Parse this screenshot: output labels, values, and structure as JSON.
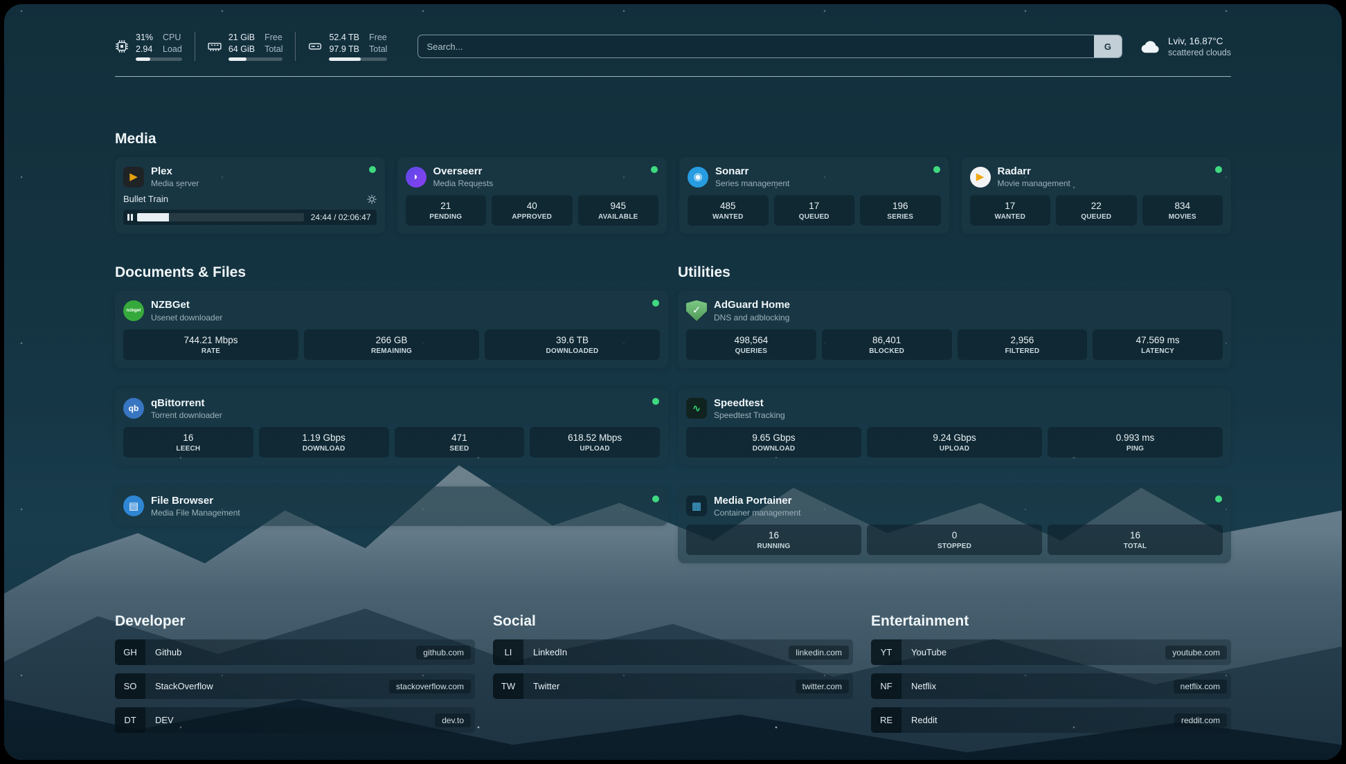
{
  "colors": {
    "online": "#3fd97f",
    "bar-fill": "#e9eff2"
  },
  "topbar": {
    "cpu": {
      "value_top": "31%",
      "value_bottom": "2.94",
      "label_top": "CPU",
      "label_bottom": "Load",
      "progress": 31
    },
    "memory": {
      "value_top": "21 GiB",
      "value_bottom": "64 GiB",
      "label_top": "Free",
      "label_bottom": "Total",
      "progress": 33
    },
    "disk": {
      "value_top": "52.4 TB",
      "value_bottom": "97.9 TB",
      "label_top": "Free",
      "label_bottom": "Total",
      "progress": 54
    },
    "search": {
      "placeholder": "Search...",
      "provider_label": "G",
      "value": ""
    },
    "weather": {
      "location": "Lviv, 16.87°C",
      "condition": "scattered clouds"
    }
  },
  "media": {
    "title": "Media",
    "plex": {
      "icon": {
        "text": "▶",
        "bg": "#1f2326",
        "fg": "#e5a00d"
      },
      "name": "Plex",
      "subtitle": "Media server",
      "now_playing": "Bullet Train",
      "elapsed": "24:44 / 02:06:47",
      "progress": 19
    },
    "overseerr": {
      "icon": {
        "text": "◗",
        "bg": "linear-gradient(135deg,#5b4ae8,#8a3ff0)",
        "fg": "#f5f3ff",
        "shape": "circle"
      },
      "name": "Overseerr",
      "subtitle": "Media Requests",
      "stats": [
        {
          "value": "21",
          "label": "PENDING"
        },
        {
          "value": "40",
          "label": "APPROVED"
        },
        {
          "value": "945",
          "label": "AVAILABLE"
        }
      ]
    },
    "sonarr": {
      "icon": {
        "text": "◉",
        "bg": "#279ce0",
        "fg": "#eaf7ff",
        "shape": "circle"
      },
      "name": "Sonarr",
      "subtitle": "Series management",
      "stats": [
        {
          "value": "485",
          "label": "WANTED"
        },
        {
          "value": "17",
          "label": "QUEUED"
        },
        {
          "value": "196",
          "label": "SERIES"
        }
      ]
    },
    "radarr": {
      "icon": {
        "text": "▶",
        "bg": "#f2f3f4",
        "fg": "#f0a811",
        "shape": "circle"
      },
      "name": "Radarr",
      "subtitle": "Movie management",
      "stats": [
        {
          "value": "17",
          "label": "WANTED"
        },
        {
          "value": "22",
          "label": "QUEUED"
        },
        {
          "value": "834",
          "label": "MOVIES"
        }
      ]
    }
  },
  "documents": {
    "title": "Documents & Files",
    "nzbget": {
      "icon": {
        "text": "nzbget",
        "bg": "#36a93c",
        "fg": "#ffffff",
        "shape": "circle"
      },
      "name": "NZBGet",
      "subtitle": "Usenet downloader",
      "stats": [
        {
          "value": "744.21 Mbps",
          "label": "RATE"
        },
        {
          "value": "266 GB",
          "label": "REMAINING"
        },
        {
          "value": "39.6 TB",
          "label": "DOWNLOADED"
        }
      ]
    },
    "qbittorrent": {
      "icon": {
        "text": "qb",
        "bg": "#3876c2",
        "fg": "#ffffff",
        "shape": "circle"
      },
      "name": "qBittorrent",
      "subtitle": "Torrent downloader",
      "stats": [
        {
          "value": "16",
          "label": "LEECH"
        },
        {
          "value": "1.19 Gbps",
          "label": "DOWNLOAD"
        },
        {
          "value": "471",
          "label": "SEED"
        },
        {
          "value": "618.52 Mbps",
          "label": "UPLOAD"
        }
      ]
    },
    "filebrowser": {
      "icon": {
        "text": "▤",
        "bg": "#2e86d4",
        "fg": "#ffffff",
        "shape": "circle"
      },
      "name": "File Browser",
      "subtitle": "Media File Management"
    }
  },
  "utilities": {
    "title": "Utilities",
    "adguard": {
      "icon": {
        "text": "✓",
        "bg": "linear-gradient(180deg,#7cc884,#4f9a59)",
        "fg": "#ffffff",
        "shape": "shield"
      },
      "name": "AdGuard Home",
      "subtitle": "DNS and adblocking",
      "stats": [
        {
          "value": "498,564",
          "label": "QUERIES"
        },
        {
          "value": "86,401",
          "label": "BLOCKED"
        },
        {
          "value": "2,956",
          "label": "FILTERED"
        },
        {
          "value": "47.569 ms",
          "label": "LATENCY"
        }
      ]
    },
    "speedtest": {
      "icon": {
        "text": "∿",
        "bg": "#11231f",
        "fg": "#2fd573"
      },
      "name": "Speedtest",
      "subtitle": "Speedtest Tracking",
      "stats": [
        {
          "value": "9.65 Gbps",
          "label": "DOWNLOAD"
        },
        {
          "value": "9.24 Gbps",
          "label": "UPLOAD"
        },
        {
          "value": "0.993 ms",
          "label": "PING"
        }
      ]
    },
    "portainer": {
      "icon": {
        "text": "▦",
        "bg": "#0f2733",
        "fg": "#4ab6e8"
      },
      "name": "Media Portainer",
      "subtitle": "Container management",
      "stats": [
        {
          "value": "16",
          "label": "RUNNING"
        },
        {
          "value": "0",
          "label": "STOPPED"
        },
        {
          "value": "16",
          "label": "TOTAL"
        }
      ]
    }
  },
  "bookmarks": {
    "developer": {
      "title": "Developer",
      "items": [
        {
          "abbr": "GH",
          "name": "Github",
          "url": "github.com"
        },
        {
          "abbr": "SO",
          "name": "StackOverflow",
          "url": "stackoverflow.com"
        },
        {
          "abbr": "DT",
          "name": "DEV",
          "url": "dev.to"
        }
      ]
    },
    "social": {
      "title": "Social",
      "items": [
        {
          "abbr": "LI",
          "name": "LinkedIn",
          "url": "linkedin.com"
        },
        {
          "abbr": "TW",
          "name": "Twitter",
          "url": "twitter.com"
        }
      ]
    },
    "entertainment": {
      "title": "Entertainment",
      "items": [
        {
          "abbr": "YT",
          "name": "YouTube",
          "url": "youtube.com"
        },
        {
          "abbr": "NF",
          "name": "Netflix",
          "url": "netflix.com"
        },
        {
          "abbr": "RE",
          "name": "Reddit",
          "url": "reddit.com"
        }
      ]
    }
  }
}
